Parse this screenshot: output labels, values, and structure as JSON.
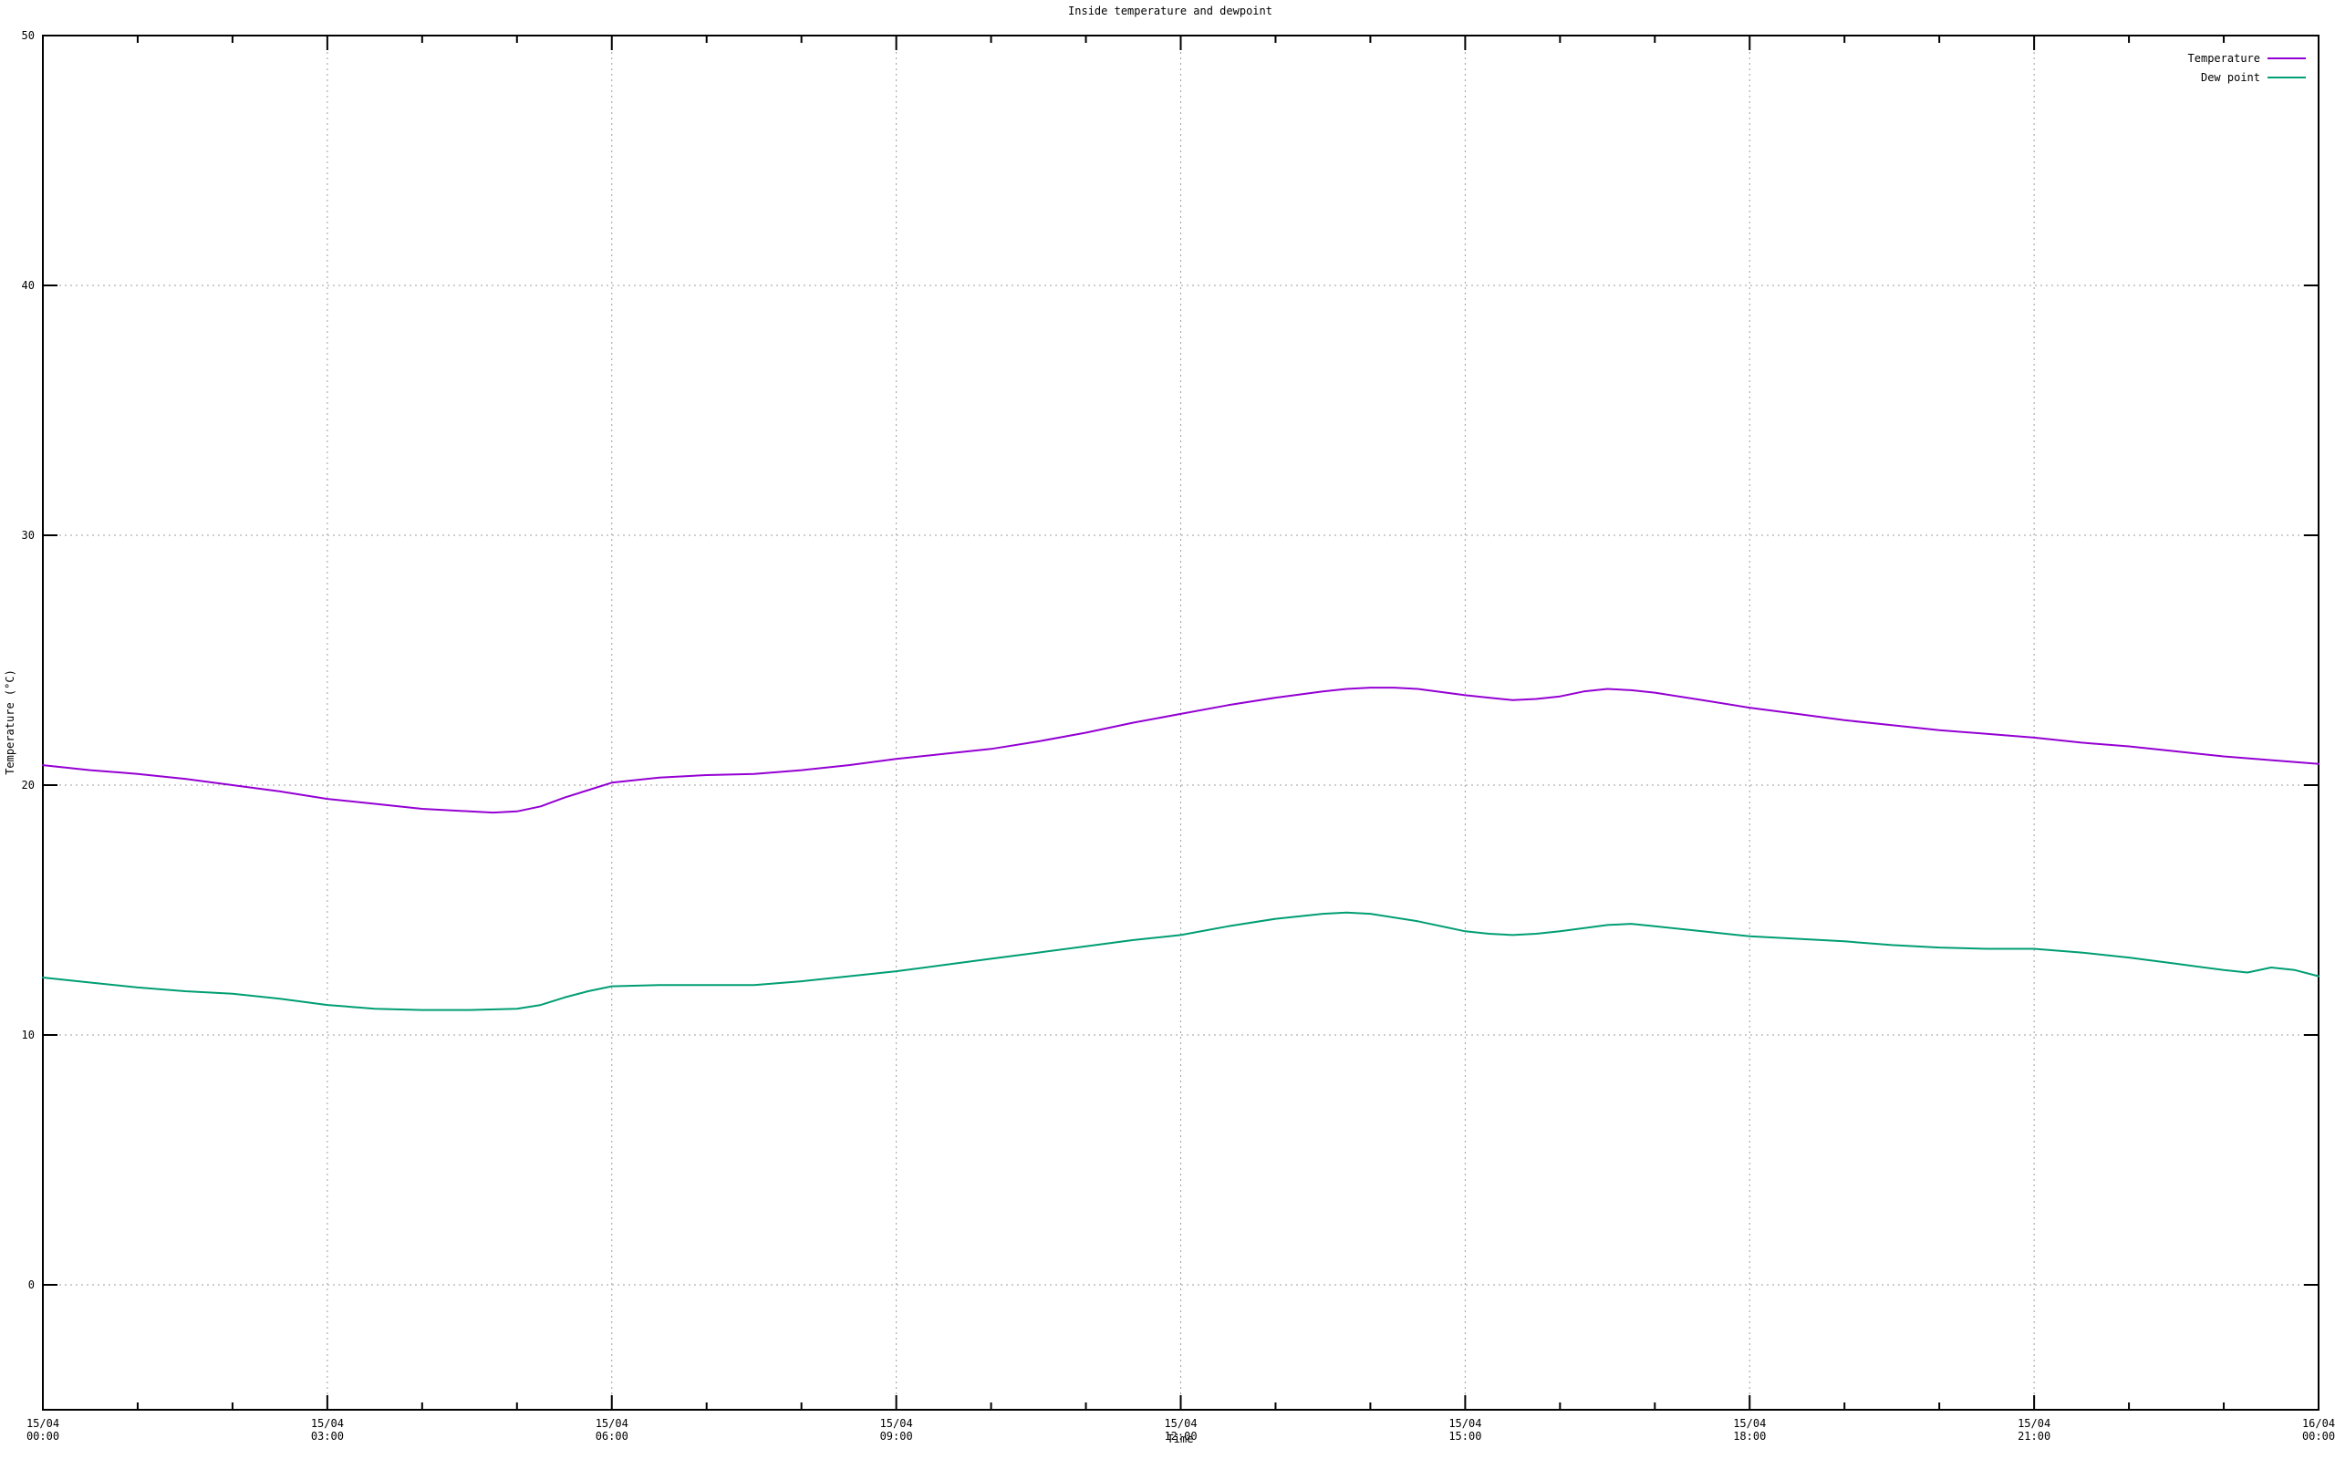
{
  "chart_data": {
    "type": "line",
    "title": "Inside temperature and dewpoint",
    "xlabel": "Time",
    "ylabel": "Temperature (°C)",
    "legend_position": "top-right",
    "grid": "on",
    "x_axis": {
      "min_hours": 0,
      "max_hours": 24,
      "major_tick_interval_hours": 3,
      "minor_tick_interval_hours": 1
    },
    "y_axis": {
      "min": -5,
      "max": 50,
      "ticks": [
        0,
        10,
        20,
        30,
        40,
        50
      ]
    },
    "x_major_ticks": [
      {
        "hour": 0,
        "date": "15/04",
        "time": "00:00"
      },
      {
        "hour": 3,
        "date": "15/04",
        "time": "03:00"
      },
      {
        "hour": 6,
        "date": "15/04",
        "time": "06:00"
      },
      {
        "hour": 9,
        "date": "15/04",
        "time": "09:00"
      },
      {
        "hour": 12,
        "date": "15/04",
        "time": "12:00"
      },
      {
        "hour": 15,
        "date": "15/04",
        "time": "15:00"
      },
      {
        "hour": 18,
        "date": "15/04",
        "time": "18:00"
      },
      {
        "hour": 21,
        "date": "15/04",
        "time": "21:00"
      },
      {
        "hour": 24,
        "date": "16/04",
        "time": "00:00"
      }
    ],
    "gridlines": {
      "horizontal_at": [
        0,
        10,
        20,
        30,
        40
      ],
      "vertical_at_hours": [
        3,
        6,
        9,
        12,
        15,
        18,
        21
      ]
    },
    "series": [
      {
        "name": "Temperature",
        "color": "#9400d3",
        "points": [
          [
            0,
            20.8
          ],
          [
            0.5,
            20.6
          ],
          [
            1,
            20.45
          ],
          [
            1.5,
            20.25
          ],
          [
            2,
            20.0
          ],
          [
            2.5,
            19.75
          ],
          [
            3,
            19.45
          ],
          [
            3.5,
            19.25
          ],
          [
            4,
            19.05
          ],
          [
            4.5,
            18.95
          ],
          [
            4.75,
            18.9
          ],
          [
            5,
            18.95
          ],
          [
            5.25,
            19.15
          ],
          [
            5.5,
            19.5
          ],
          [
            5.75,
            19.8
          ],
          [
            6,
            20.1
          ],
          [
            6.25,
            20.2
          ],
          [
            6.5,
            20.3
          ],
          [
            7,
            20.4
          ],
          [
            7.5,
            20.45
          ],
          [
            8,
            20.6
          ],
          [
            8.5,
            20.8
          ],
          [
            9,
            21.05
          ],
          [
            9.5,
            21.25
          ],
          [
            10,
            21.45
          ],
          [
            10.5,
            21.75
          ],
          [
            11,
            22.1
          ],
          [
            11.5,
            22.5
          ],
          [
            12,
            22.85
          ],
          [
            12.5,
            23.2
          ],
          [
            13,
            23.5
          ],
          [
            13.5,
            23.75
          ],
          [
            13.75,
            23.85
          ],
          [
            14,
            23.9
          ],
          [
            14.25,
            23.9
          ],
          [
            14.5,
            23.85
          ],
          [
            15,
            23.6
          ],
          [
            15.25,
            23.5
          ],
          [
            15.5,
            23.4
          ],
          [
            15.75,
            23.45
          ],
          [
            16,
            23.55
          ],
          [
            16.25,
            23.75
          ],
          [
            16.5,
            23.85
          ],
          [
            16.75,
            23.8
          ],
          [
            17,
            23.7
          ],
          [
            17.5,
            23.4
          ],
          [
            18,
            23.1
          ],
          [
            18.5,
            22.85
          ],
          [
            19,
            22.6
          ],
          [
            19.5,
            22.4
          ],
          [
            20,
            22.2
          ],
          [
            20.5,
            22.05
          ],
          [
            21,
            21.9
          ],
          [
            21.5,
            21.7
          ],
          [
            22,
            21.55
          ],
          [
            22.5,
            21.35
          ],
          [
            23,
            21.15
          ],
          [
            23.5,
            21.0
          ],
          [
            24,
            20.85
          ]
        ]
      },
      {
        "name": "Dew point",
        "color": "#009e73",
        "points": [
          [
            0,
            12.3
          ],
          [
            0.5,
            12.1
          ],
          [
            1,
            11.9
          ],
          [
            1.5,
            11.75
          ],
          [
            2,
            11.65
          ],
          [
            2.5,
            11.45
          ],
          [
            3,
            11.2
          ],
          [
            3.5,
            11.05
          ],
          [
            4,
            11.0
          ],
          [
            4.5,
            11.0
          ],
          [
            5,
            11.05
          ],
          [
            5.25,
            11.2
          ],
          [
            5.5,
            11.5
          ],
          [
            5.75,
            11.75
          ],
          [
            6,
            11.95
          ],
          [
            6.5,
            12.0
          ],
          [
            7,
            12.0
          ],
          [
            7.5,
            12.0
          ],
          [
            8,
            12.15
          ],
          [
            8.5,
            12.35
          ],
          [
            9,
            12.55
          ],
          [
            9.5,
            12.8
          ],
          [
            10,
            13.05
          ],
          [
            10.5,
            13.3
          ],
          [
            11,
            13.55
          ],
          [
            11.5,
            13.8
          ],
          [
            12,
            14.0
          ],
          [
            12.5,
            14.35
          ],
          [
            13,
            14.65
          ],
          [
            13.5,
            14.85
          ],
          [
            13.75,
            14.9
          ],
          [
            14,
            14.85
          ],
          [
            14.5,
            14.55
          ],
          [
            15,
            14.15
          ],
          [
            15.25,
            14.05
          ],
          [
            15.5,
            14.0
          ],
          [
            15.75,
            14.05
          ],
          [
            16,
            14.15
          ],
          [
            16.5,
            14.4
          ],
          [
            16.75,
            14.45
          ],
          [
            17,
            14.35
          ],
          [
            17.5,
            14.15
          ],
          [
            18,
            13.95
          ],
          [
            18.5,
            13.85
          ],
          [
            19,
            13.75
          ],
          [
            19.5,
            13.6
          ],
          [
            20,
            13.5
          ],
          [
            20.5,
            13.45
          ],
          [
            21,
            13.45
          ],
          [
            21.5,
            13.3
          ],
          [
            22,
            13.1
          ],
          [
            22.5,
            12.85
          ],
          [
            23,
            12.6
          ],
          [
            23.25,
            12.5
          ],
          [
            23.5,
            12.7
          ],
          [
            23.75,
            12.6
          ],
          [
            24,
            12.35
          ]
        ]
      }
    ]
  }
}
